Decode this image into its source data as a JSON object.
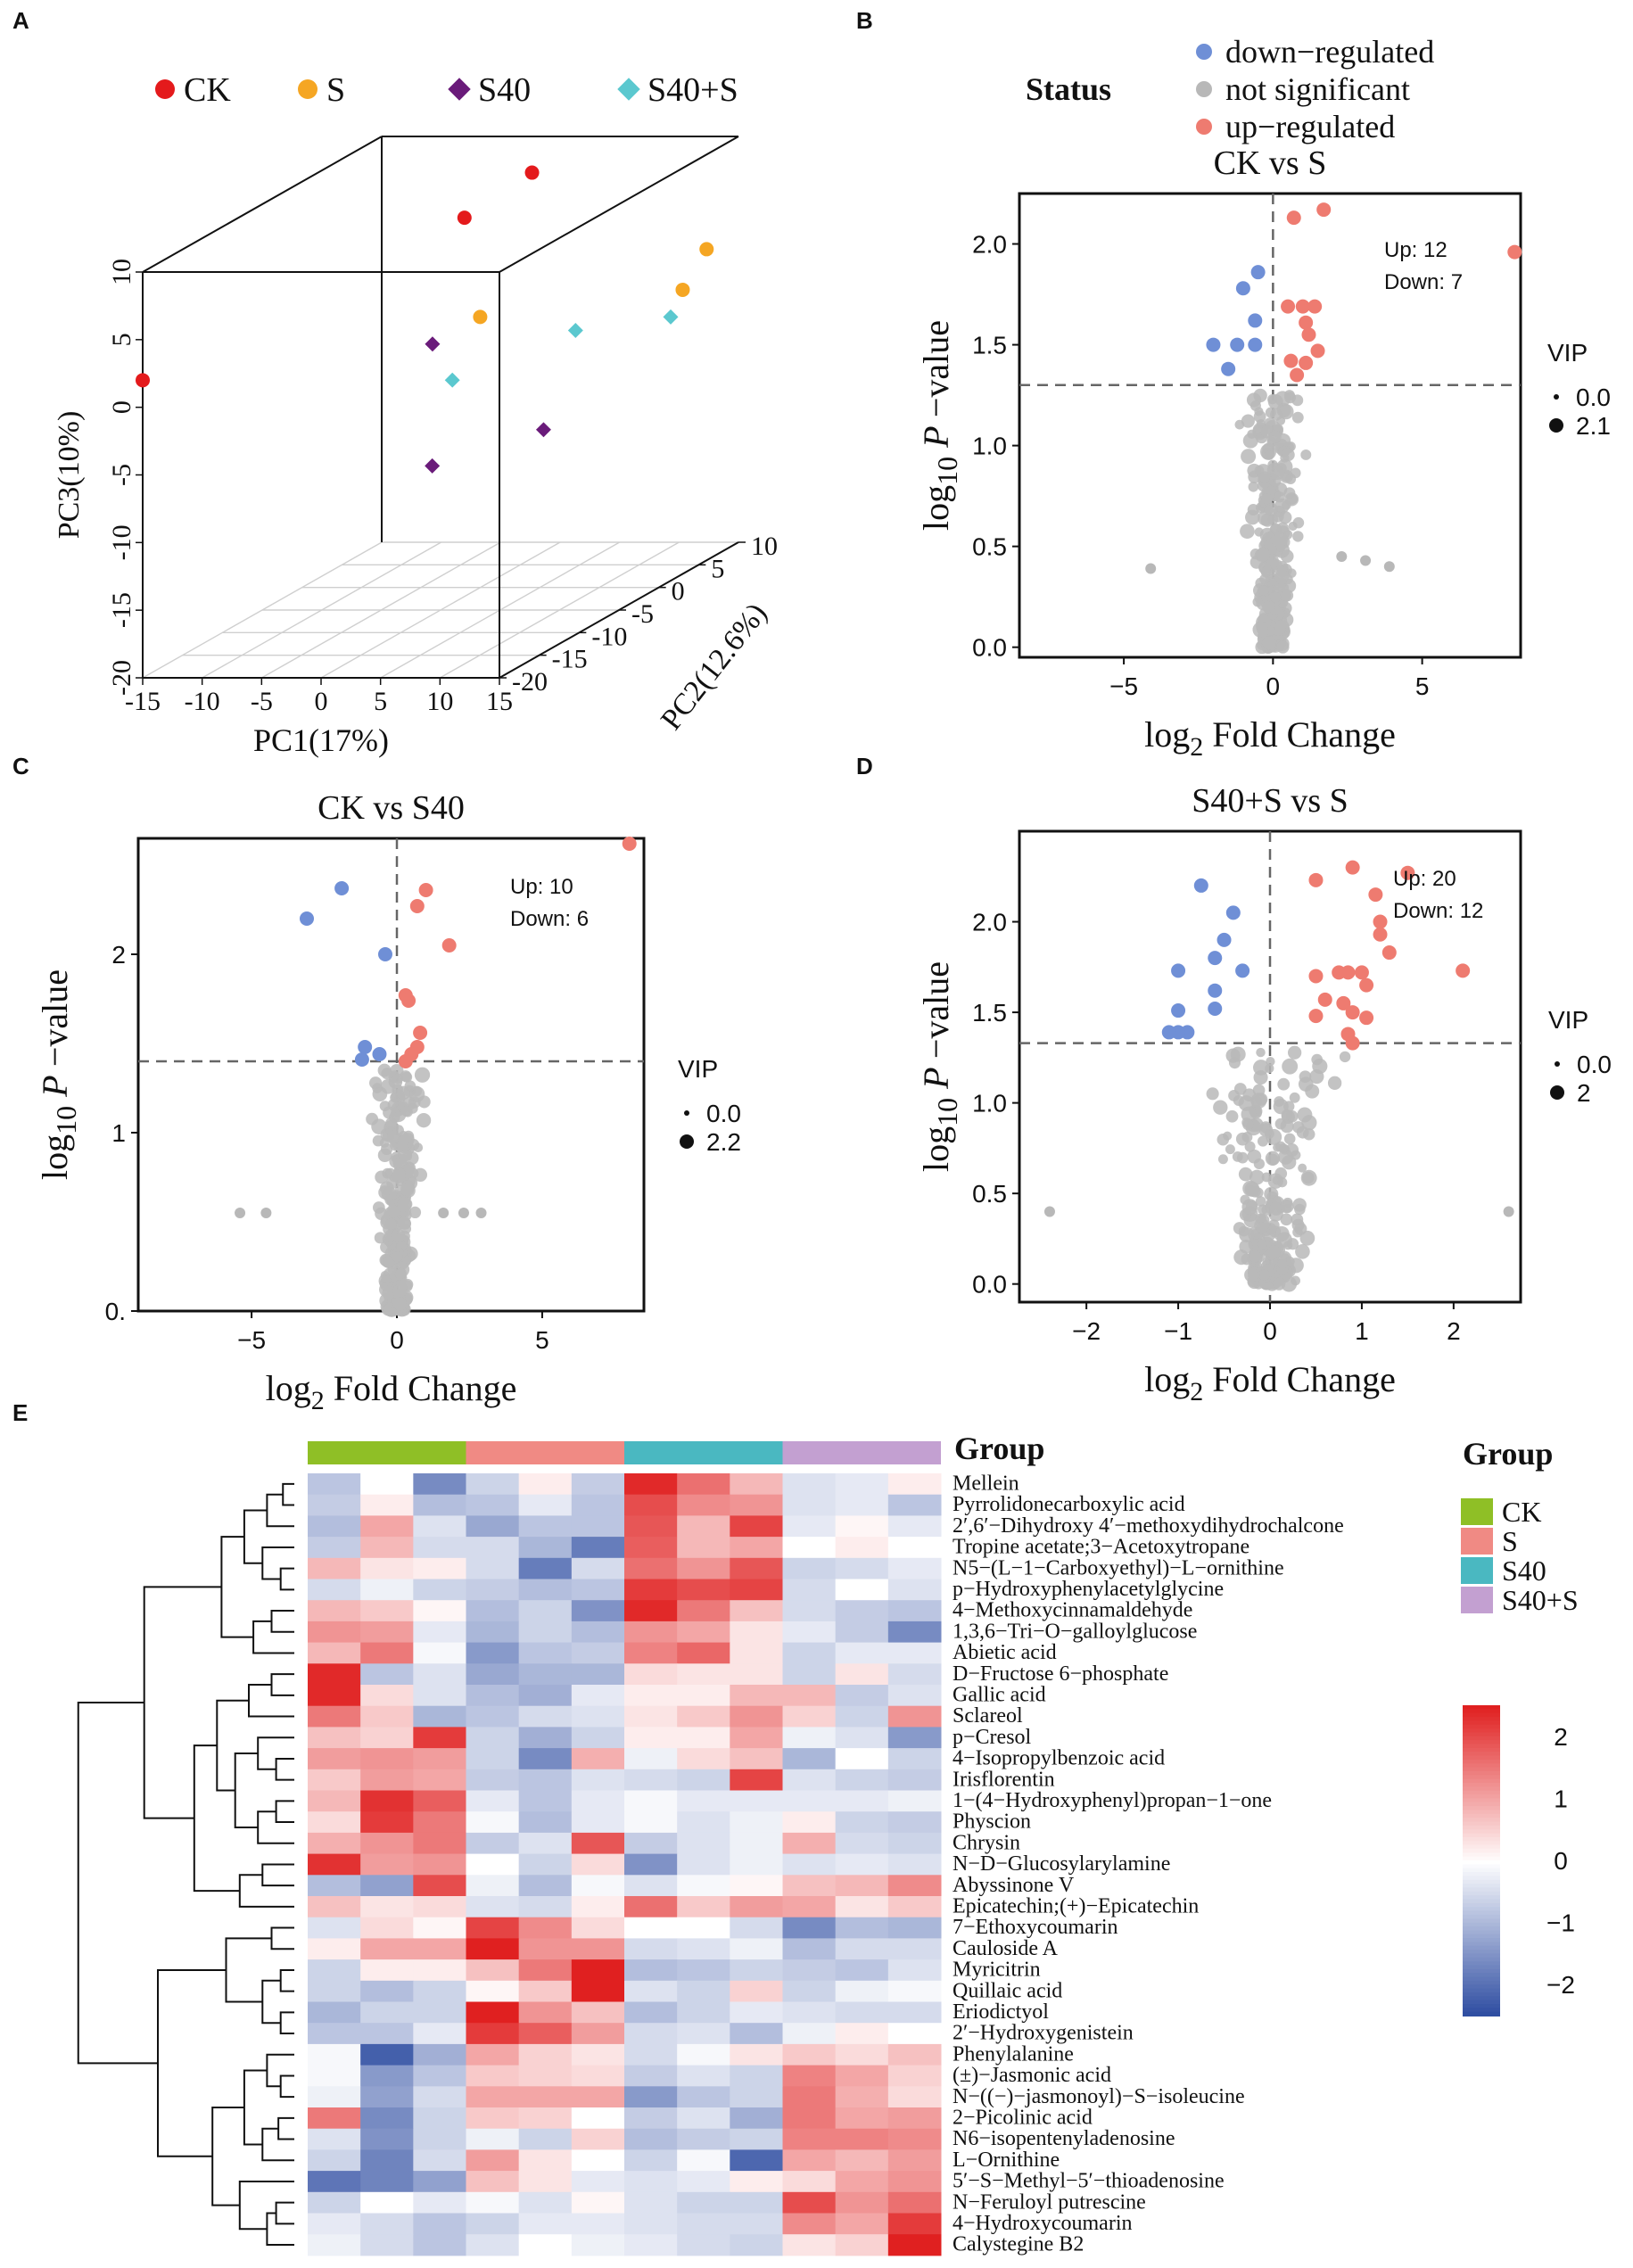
{
  "colors": {
    "ck_red": "#e41a1c",
    "s_orange": "#f5a623",
    "s40_purple": "#6a1b7a",
    "s40s_cyan": "#5bc8cf",
    "down_blue": "#6f8fd6",
    "not_sig_gray": "#b8b8b8",
    "up_red": "#ee7b70",
    "group_ck": "#8fbf26",
    "group_s": "#f08a84",
    "group_s40": "#4ab8c1",
    "group_s40s": "#c3a0d1",
    "heat_low": "#2b4aa0",
    "heat_mid": "#ffffff",
    "heat_high": "#e02020"
  },
  "panel_labels": [
    "A",
    "B",
    "C",
    "D",
    "E"
  ],
  "chart_data": [
    {
      "id": "A",
      "type": "scatter",
      "subtype": "3d-pca",
      "legend": [
        {
          "label": "CK",
          "shape": "circle",
          "color": "#e41a1c"
        },
        {
          "label": "S",
          "shape": "circle",
          "color": "#f5a623"
        },
        {
          "label": "S40",
          "shape": "diamond",
          "color": "#6a1b7a"
        },
        {
          "label": "S40+S",
          "shape": "diamond",
          "color": "#5bc8cf"
        }
      ],
      "xlabel": "PC1(17%)",
      "ylabel": "PC2(12.6%)",
      "zlabel": "PC3(10%)",
      "xticks": [
        "-15",
        "-10",
        "-5",
        "0",
        "5",
        "10",
        "15"
      ],
      "yticks": [
        "-20",
        "-15",
        "-10",
        "-5",
        "0",
        "5",
        "10"
      ],
      "zticks": [
        "-20",
        "-15",
        "-10",
        "-5",
        "0",
        "5",
        "10"
      ],
      "xlim": [
        -15,
        15
      ],
      "ylim": [
        -20,
        10
      ],
      "zlim": [
        -20,
        10
      ],
      "points": [
        {
          "group": "CK",
          "pc1": -15,
          "pc2": -20,
          "pc3": 2
        },
        {
          "group": "CK",
          "pc1": 3,
          "pc2": 2,
          "pc3": 10
        },
        {
          "group": "CK",
          "pc1": 0,
          "pc2": -2,
          "pc3": 8
        },
        {
          "group": "S",
          "pc1": 15,
          "pc2": 6,
          "pc3": 3
        },
        {
          "group": "S",
          "pc1": 15,
          "pc2": 3,
          "pc3": 1
        },
        {
          "group": "S",
          "pc1": 4,
          "pc2": -6,
          "pc3": 2
        },
        {
          "group": "S40",
          "pc1": 2,
          "pc2": -9,
          "pc3": 1
        },
        {
          "group": "S40",
          "pc1": 10,
          "pc2": -7,
          "pc3": -6
        },
        {
          "group": "S40",
          "pc1": 6,
          "pc2": -15,
          "pc3": -6
        },
        {
          "group": "S40+S",
          "pc1": 16,
          "pc2": 0,
          "pc3": 0
        },
        {
          "group": "S40+S",
          "pc1": 8,
          "pc2": 0,
          "pc3": -1
        },
        {
          "group": "S40+S",
          "pc1": 3,
          "pc2": -8,
          "pc3": -2
        }
      ]
    },
    {
      "id": "B",
      "type": "scatter",
      "subtype": "volcano",
      "title": "CK  vs   S",
      "legend_title": "Status",
      "legend": [
        {
          "label": "down−regulated",
          "color": "#6f8fd6"
        },
        {
          "label": "not significant",
          "color": "#b8b8b8"
        },
        {
          "label": "up−regulated",
          "color": "#ee7b70"
        }
      ],
      "size_legend_title": "VIP",
      "size_legend": [
        "0.0",
        "2.1"
      ],
      "counts_text": [
        "Up: 12",
        "Down: 7"
      ],
      "xlabel_main": "log",
      "xlabel_sub": "2",
      "xlabel_tail": " Fold Change",
      "ylabel_main": "log",
      "ylabel_sub": "10",
      "ylabel_mid": " P ",
      "ylabel_tail": "−value",
      "xticks": [
        "−5",
        "0",
        "5"
      ],
      "xtick_values": [
        -5,
        0,
        5
      ],
      "yticks": [
        "0.0",
        "0.5",
        "1.0",
        "1.5",
        "2.0"
      ],
      "ytick_values": [
        0,
        0.5,
        1.0,
        1.5,
        2.0
      ],
      "xlim": [
        -8.5,
        8.3
      ],
      "ylim": [
        -0.05,
        2.25
      ],
      "threshold_y": 1.3,
      "up_points": [
        [
          0.7,
          2.13
        ],
        [
          1.7,
          2.17
        ],
        [
          8.1,
          1.96
        ],
        [
          0.5,
          1.69
        ],
        [
          1.0,
          1.69
        ],
        [
          1.4,
          1.69
        ],
        [
          1.1,
          1.61
        ],
        [
          1.2,
          1.55
        ],
        [
          1.5,
          1.47
        ],
        [
          0.6,
          1.42
        ],
        [
          1.1,
          1.41
        ],
        [
          0.8,
          1.35
        ]
      ],
      "down_points": [
        [
          -0.5,
          1.86
        ],
        [
          -1.0,
          1.78
        ],
        [
          -0.6,
          1.62
        ],
        [
          -2.0,
          1.5
        ],
        [
          -1.2,
          1.5
        ],
        [
          -0.6,
          1.5
        ],
        [
          -1.5,
          1.38
        ]
      ],
      "gray_seed": 11,
      "gray_count": 260,
      "gray_spread": 0.9
    },
    {
      "id": "C",
      "type": "scatter",
      "subtype": "volcano",
      "title": "CK  vs   S40",
      "size_legend_title": "VIP",
      "size_legend": [
        "0.0",
        "2.2"
      ],
      "counts_text": [
        "Up: 10",
        "Down: 6"
      ],
      "xlabel_main": "log",
      "xlabel_sub": "2",
      "xlabel_tail": " Fold Change",
      "ylabel_main": "log",
      "ylabel_sub": "10",
      "ylabel_mid": " P ",
      "ylabel_tail": "−value",
      "xticks": [
        "−5",
        "0",
        "5"
      ],
      "xtick_values": [
        -5,
        0,
        5
      ],
      "yticks": [
        "0.",
        "1",
        "2"
      ],
      "ytick_values": [
        0,
        1,
        2
      ],
      "xlim": [
        -8.9,
        8.5
      ],
      "ylim": [
        0,
        2.65
      ],
      "threshold_y": 1.4,
      "up_points": [
        [
          8.0,
          2.62
        ],
        [
          1.0,
          2.36
        ],
        [
          0.7,
          2.27
        ],
        [
          1.8,
          2.05
        ],
        [
          0.3,
          1.77
        ],
        [
          0.4,
          1.74
        ],
        [
          0.8,
          1.56
        ],
        [
          0.7,
          1.48
        ],
        [
          0.5,
          1.44
        ],
        [
          0.3,
          1.4
        ]
      ],
      "down_points": [
        [
          -1.9,
          2.37
        ],
        [
          -3.1,
          2.2
        ],
        [
          -0.4,
          2.0
        ],
        [
          -1.1,
          1.48
        ],
        [
          -0.6,
          1.44
        ],
        [
          -1.2,
          1.41
        ]
      ],
      "gray_seed": 23,
      "gray_count": 260,
      "gray_spread": 0.75
    },
    {
      "id": "D",
      "type": "scatter",
      "subtype": "volcano",
      "title": "S40+S  vs   S",
      "size_legend_title": "VIP",
      "size_legend": [
        "0.0",
        "2"
      ],
      "counts_text": [
        "Up: 20",
        "Down: 12"
      ],
      "xlabel_main": "log",
      "xlabel_sub": "2",
      "xlabel_tail": " Fold Change",
      "ylabel_main": "log",
      "ylabel_sub": "10",
      "ylabel_mid": " P ",
      "ylabel_tail": "−value",
      "xticks": [
        "−2",
        "−1",
        "0",
        "1",
        "2"
      ],
      "xtick_values": [
        -2,
        -1,
        0,
        1,
        2
      ],
      "yticks": [
        "0.0",
        "0.5",
        "1.0",
        "1.5",
        "2.0"
      ],
      "ytick_values": [
        0,
        0.5,
        1.0,
        1.5,
        2.0
      ],
      "xlim": [
        -2.73,
        2.73
      ],
      "ylim": [
        -0.1,
        2.5
      ],
      "threshold_y": 1.33,
      "up_points": [
        [
          0.9,
          2.3
        ],
        [
          1.5,
          2.27
        ],
        [
          0.5,
          2.23
        ],
        [
          1.15,
          2.15
        ],
        [
          1.2,
          2.0
        ],
        [
          1.2,
          1.93
        ],
        [
          1.3,
          1.83
        ],
        [
          2.1,
          1.73
        ],
        [
          0.5,
          1.7
        ],
        [
          0.75,
          1.72
        ],
        [
          0.85,
          1.72
        ],
        [
          1.0,
          1.72
        ],
        [
          0.6,
          1.57
        ],
        [
          0.8,
          1.55
        ],
        [
          1.05,
          1.65
        ],
        [
          0.5,
          1.48
        ],
        [
          0.9,
          1.5
        ],
        [
          1.05,
          1.47
        ],
        [
          0.85,
          1.38
        ],
        [
          0.9,
          1.33
        ]
      ],
      "down_points": [
        [
          -0.75,
          2.2
        ],
        [
          -0.4,
          2.05
        ],
        [
          -0.5,
          1.9
        ],
        [
          -0.6,
          1.8
        ],
        [
          -1.0,
          1.73
        ],
        [
          -0.3,
          1.73
        ],
        [
          -0.6,
          1.62
        ],
        [
          -1.0,
          1.51
        ],
        [
          -0.6,
          1.52
        ],
        [
          -0.9,
          1.39
        ],
        [
          -1.0,
          1.39
        ],
        [
          -1.1,
          1.39
        ]
      ],
      "gray_seed": 37,
      "gray_count": 230,
      "gray_spread": 0.55
    },
    {
      "id": "E",
      "type": "heatmap",
      "title": "Group",
      "groups": [
        "CK",
        "S",
        "S40",
        "S40+S"
      ],
      "group_title": "Group",
      "colorbar_ticks": [
        "2",
        "1",
        "0",
        "−1",
        "−2"
      ],
      "colorbar_values": [
        2,
        1,
        0,
        -1,
        -2
      ],
      "zlim": [
        -2.5,
        2.5
      ],
      "rows": [
        "Mellein",
        "Pyrrolidonecarboxylic acid",
        "2′,6′−Dihydroxy 4′−methoxydihydrochalcone",
        "Tropine acetate;3−Acetoxytropane",
        "N5−(L−1−Carboxyethyl)−L−ornithine",
        "p−Hydroxyphenylacetylglycine",
        "4−Methoxycinnamaldehyde",
        "1,3,6−Tri−O−galloylglucose",
        "Abietic acid",
        "D−Fructose 6−phosphate",
        "Gallic acid",
        "Sclareol",
        "p−Cresol",
        "4−Isopropylbenzoic acid",
        "Irisflorentin",
        "1−(4−Hydroxyphenyl)propan−1−one",
        "Physcion",
        "Chrysin",
        "N−D−Glucosylarylamine",
        "Abyssinone V",
        "Epicatechin;(+)−Epicatechin",
        "7−Ethoxycoumarin",
        "Cauloside A",
        "Myricitrin",
        "Quillaic acid",
        "Eriodictyol",
        "2′−Hydroxygenistein",
        "Phenylalanine",
        "(±)−Jasmonic acid",
        "N−((−)−jasmonoyl)−S−isoleucine",
        "2−Picolinic acid",
        "N6−isopentenyladenosine",
        "L−Ornithine",
        "5′−S−Methyl−5′−thioadenosine",
        "N−Feruloyl putrescine",
        "4−Hydroxycoumarin",
        "Calystegine B2"
      ],
      "values": [
        [
          -0.8,
          0.0,
          -1.6,
          -0.6,
          0.2,
          -0.7,
          2.4,
          1.6,
          0.8,
          -0.4,
          -0.3,
          0.2
        ],
        [
          -0.7,
          0.2,
          -0.9,
          -0.8,
          -0.3,
          -0.8,
          2.0,
          1.3,
          1.2,
          -0.4,
          -0.3,
          -0.8
        ],
        [
          -0.9,
          1.0,
          -0.4,
          -1.2,
          -0.8,
          -0.8,
          1.9,
          0.8,
          2.1,
          -0.3,
          0.1,
          -0.3
        ],
        [
          -0.7,
          0.8,
          -0.5,
          -0.5,
          -1.0,
          -1.8,
          1.8,
          0.8,
          1.0,
          0.0,
          0.2,
          0.0
        ],
        [
          0.8,
          0.3,
          0.2,
          -0.5,
          -1.8,
          -0.5,
          1.6,
          1.2,
          1.9,
          -0.6,
          -0.5,
          -0.3
        ],
        [
          -0.5,
          -0.2,
          -0.6,
          -0.7,
          -0.9,
          -0.8,
          2.2,
          2.0,
          2.1,
          -0.5,
          0.0,
          -0.4
        ],
        [
          0.8,
          0.6,
          0.1,
          -0.9,
          -0.6,
          -1.5,
          2.4,
          1.5,
          0.7,
          -0.5,
          -0.7,
          -0.8
        ],
        [
          1.2,
          1.1,
          -0.3,
          -1.0,
          -0.6,
          -0.9,
          1.2,
          1.0,
          0.3,
          -0.3,
          -0.7,
          -1.6
        ],
        [
          0.8,
          1.5,
          -0.1,
          -1.4,
          -0.8,
          -0.7,
          1.4,
          1.7,
          0.3,
          -0.6,
          -0.3,
          -0.3
        ],
        [
          2.4,
          -0.8,
          -0.4,
          -1.2,
          -1.0,
          -1.0,
          0.4,
          0.3,
          0.3,
          -0.6,
          0.3,
          -0.5
        ],
        [
          2.4,
          0.4,
          -0.4,
          -0.9,
          -1.1,
          -0.3,
          0.2,
          0.2,
          0.8,
          0.8,
          -0.7,
          -0.4
        ],
        [
          1.5,
          0.6,
          -1.0,
          -0.8,
          -0.5,
          -0.4,
          0.3,
          0.6,
          1.2,
          0.5,
          -0.6,
          1.2
        ],
        [
          0.7,
          0.5,
          2.2,
          -0.6,
          -1.1,
          -0.6,
          0.2,
          0.2,
          1.0,
          -0.2,
          -0.4,
          -1.4
        ],
        [
          1.1,
          1.2,
          1.1,
          -0.6,
          -1.6,
          0.9,
          -0.2,
          0.4,
          0.7,
          -1.0,
          0.0,
          -0.6
        ],
        [
          0.6,
          1.1,
          1.0,
          -0.7,
          -0.8,
          -0.4,
          -0.5,
          -0.6,
          2.1,
          -0.4,
          -0.6,
          -0.7
        ],
        [
          0.8,
          2.3,
          1.8,
          -0.3,
          -0.8,
          -0.3,
          -0.1,
          -0.3,
          -0.3,
          -0.3,
          -0.3,
          -0.2
        ],
        [
          0.4,
          2.2,
          1.5,
          -0.1,
          -0.9,
          -0.3,
          -0.1,
          -0.4,
          -0.2,
          0.2,
          -0.6,
          -0.7
        ],
        [
          0.9,
          1.2,
          1.5,
          -0.7,
          -0.4,
          1.9,
          -0.7,
          -0.4,
          -0.2,
          0.9,
          -0.5,
          -0.6
        ],
        [
          2.3,
          1.1,
          1.2,
          0.0,
          -0.6,
          0.4,
          -1.5,
          -0.4,
          -0.2,
          -0.4,
          -0.3,
          -0.4
        ],
        [
          -0.9,
          -1.3,
          2.0,
          -0.2,
          -0.9,
          -0.1,
          -0.4,
          -0.1,
          0.1,
          0.7,
          0.8,
          1.3
        ],
        [
          0.7,
          0.3,
          0.4,
          -0.4,
          -0.5,
          0.2,
          1.6,
          0.6,
          1.1,
          1.0,
          0.3,
          0.6
        ],
        [
          -0.4,
          0.4,
          0.1,
          2.1,
          1.3,
          0.4,
          0.0,
          0.0,
          -0.5,
          -1.6,
          -0.9,
          -1.0
        ],
        [
          0.2,
          1.0,
          1.0,
          2.5,
          1.2,
          1.2,
          -0.5,
          -0.4,
          -0.2,
          -0.9,
          -0.5,
          -0.5
        ],
        [
          -0.6,
          0.2,
          0.2,
          0.7,
          1.5,
          2.5,
          -0.9,
          -0.8,
          -0.6,
          -0.7,
          -0.8,
          -0.4
        ],
        [
          -0.6,
          -0.9,
          -0.6,
          0.1,
          0.6,
          2.5,
          -0.4,
          -0.6,
          0.5,
          -0.6,
          -0.2,
          -0.1
        ],
        [
          -1.0,
          -0.6,
          -0.6,
          2.6,
          1.2,
          0.7,
          -0.9,
          -0.6,
          -0.3,
          -0.4,
          -0.5,
          -0.5
        ],
        [
          -0.8,
          -0.8,
          -0.3,
          2.2,
          1.8,
          1.1,
          -0.5,
          -0.4,
          -0.9,
          -0.2,
          0.2,
          0.0
        ],
        [
          -0.1,
          -2.2,
          -1.1,
          1.0,
          0.5,
          0.3,
          -0.5,
          -0.1,
          0.3,
          0.6,
          0.4,
          0.7
        ],
        [
          -0.1,
          -1.4,
          -0.8,
          0.6,
          0.5,
          0.4,
          -0.7,
          -0.4,
          -0.6,
          1.4,
          1.0,
          0.5
        ],
        [
          -0.2,
          -1.3,
          -0.5,
          1.0,
          1.0,
          1.0,
          -1.4,
          -0.8,
          -0.6,
          1.5,
          0.9,
          0.4
        ],
        [
          1.5,
          -1.6,
          -0.6,
          0.6,
          0.5,
          0.0,
          -0.7,
          -0.4,
          -1.1,
          1.5,
          1.0,
          1.1
        ],
        [
          -0.4,
          -1.5,
          -0.6,
          -0.2,
          -0.6,
          0.5,
          -0.9,
          -0.7,
          -0.6,
          1.4,
          1.4,
          1.3
        ],
        [
          -0.6,
          -1.7,
          -0.5,
          1.1,
          0.3,
          0.0,
          -0.6,
          -0.1,
          -2.1,
          1.0,
          0.8,
          1.1
        ],
        [
          -1.9,
          -1.7,
          -1.3,
          0.7,
          0.3,
          -0.3,
          -0.4,
          -0.3,
          0.2,
          0.4,
          1.0,
          1.2
        ],
        [
          -0.6,
          0.0,
          -0.3,
          -0.1,
          -0.4,
          0.1,
          -0.4,
          -0.6,
          -0.6,
          2.0,
          1.2,
          1.6
        ],
        [
          -0.3,
          -0.5,
          -0.8,
          -0.6,
          -0.3,
          -0.3,
          -0.4,
          -0.5,
          -0.5,
          1.3,
          1.0,
          2.2
        ],
        [
          -0.2,
          -0.5,
          -0.8,
          -0.4,
          0.0,
          -0.2,
          -0.3,
          -0.5,
          -0.6,
          0.3,
          0.5,
          2.5
        ]
      ],
      "row_order_dendrogram": "hierarchical"
    }
  ]
}
